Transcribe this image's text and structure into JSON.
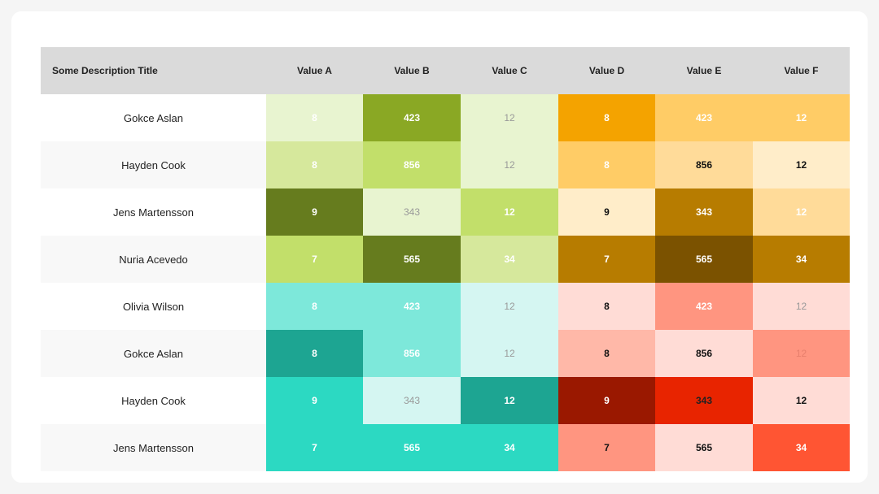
{
  "chart_data": {
    "type": "heatmap",
    "title": "",
    "columns": [
      "Some Description Title",
      "Value A",
      "Value B",
      "Value C",
      "Value D",
      "Value E",
      "Value F"
    ],
    "rows": [
      {
        "name": "Gokce Aslan",
        "values": [
          "8",
          "423",
          "12",
          "8",
          "423",
          "12"
        ],
        "fills": [
          "#e8f4d0",
          "#8aa824",
          "#e8f4d0",
          "#f4a300",
          "#ffcc66",
          "#ffcc66"
        ],
        "text": [
          "#ffffff",
          "#ffffff",
          "#999999",
          "#ffffff",
          "#ffffff",
          "#ffffff"
        ]
      },
      {
        "name": "Hayden Cook",
        "values": [
          "8",
          "856",
          "12",
          "8",
          "856",
          "12"
        ],
        "fills": [
          "#d6e89c",
          "#c2df6a",
          "#e8f4d0",
          "#ffcc66",
          "#ffdb99",
          "#ffedc9"
        ],
        "text": [
          "#ffffff",
          "#ffffff",
          "#999999",
          "#ffffff",
          "#111111",
          "#111111"
        ]
      },
      {
        "name": "Jens Martensson",
        "values": [
          "9",
          "343",
          "12",
          "9",
          "343",
          "12"
        ],
        "fills": [
          "#667c1e",
          "#e8f4d0",
          "#c2df6a",
          "#ffedc9",
          "#b77c00",
          "#ffdb99"
        ],
        "text": [
          "#ffffff",
          "#999999",
          "#ffffff",
          "#111111",
          "#ffffff",
          "#ffffff"
        ]
      },
      {
        "name": "Nuria Acevedo",
        "values": [
          "7",
          "565",
          "34",
          "7",
          "565",
          "34"
        ],
        "fills": [
          "#c2df6a",
          "#667c1e",
          "#d6e89c",
          "#b77c00",
          "#7b5200",
          "#b77c00"
        ],
        "text": [
          "#ffffff",
          "#ffffff",
          "#ffffff",
          "#ffffff",
          "#ffffff",
          "#ffffff"
        ]
      },
      {
        "name": "Olivia Wilson",
        "values": [
          "8",
          "423",
          "12",
          "8",
          "423",
          "12"
        ],
        "fills": [
          "#7de8da",
          "#7de8da",
          "#d5f6f2",
          "#ffdcd6",
          "#ff9580",
          "#ffdcd6"
        ],
        "text": [
          "#ffffff",
          "#ffffff",
          "#999999",
          "#111111",
          "#ffffff",
          "#999999"
        ]
      },
      {
        "name": "Gokce Aslan",
        "values": [
          "8",
          "856",
          "12",
          "8",
          "856",
          "12"
        ],
        "fills": [
          "#1da592",
          "#7de8da",
          "#d5f6f2",
          "#ffb8a8",
          "#ffdcd6",
          "#ff9580"
        ],
        "text": [
          "#ffffff",
          "#ffffff",
          "#999999",
          "#111111",
          "#111111",
          "#e87f6c"
        ]
      },
      {
        "name": "Hayden Cook",
        "values": [
          "9",
          "343",
          "12",
          "9",
          "343",
          "12"
        ],
        "fills": [
          "#2cd9c2",
          "#d5f6f2",
          "#1da592",
          "#9a1800",
          "#e82400",
          "#ffdcd6"
        ],
        "text": [
          "#ffffff",
          "#999999",
          "#ffffff",
          "#ffffff",
          "#222222",
          "#111111"
        ]
      },
      {
        "name": "Jens Martensson",
        "values": [
          "7",
          "565",
          "34",
          "7",
          "565",
          "34"
        ],
        "fills": [
          "#2cd9c2",
          "#2cd9c2",
          "#2cd9c2",
          "#ff9580",
          "#ffdcd6",
          "#ff5533"
        ],
        "text": [
          "#ffffff",
          "#ffffff",
          "#ffffff",
          "#111111",
          "#111111",
          "#ffffff"
        ]
      }
    ]
  }
}
